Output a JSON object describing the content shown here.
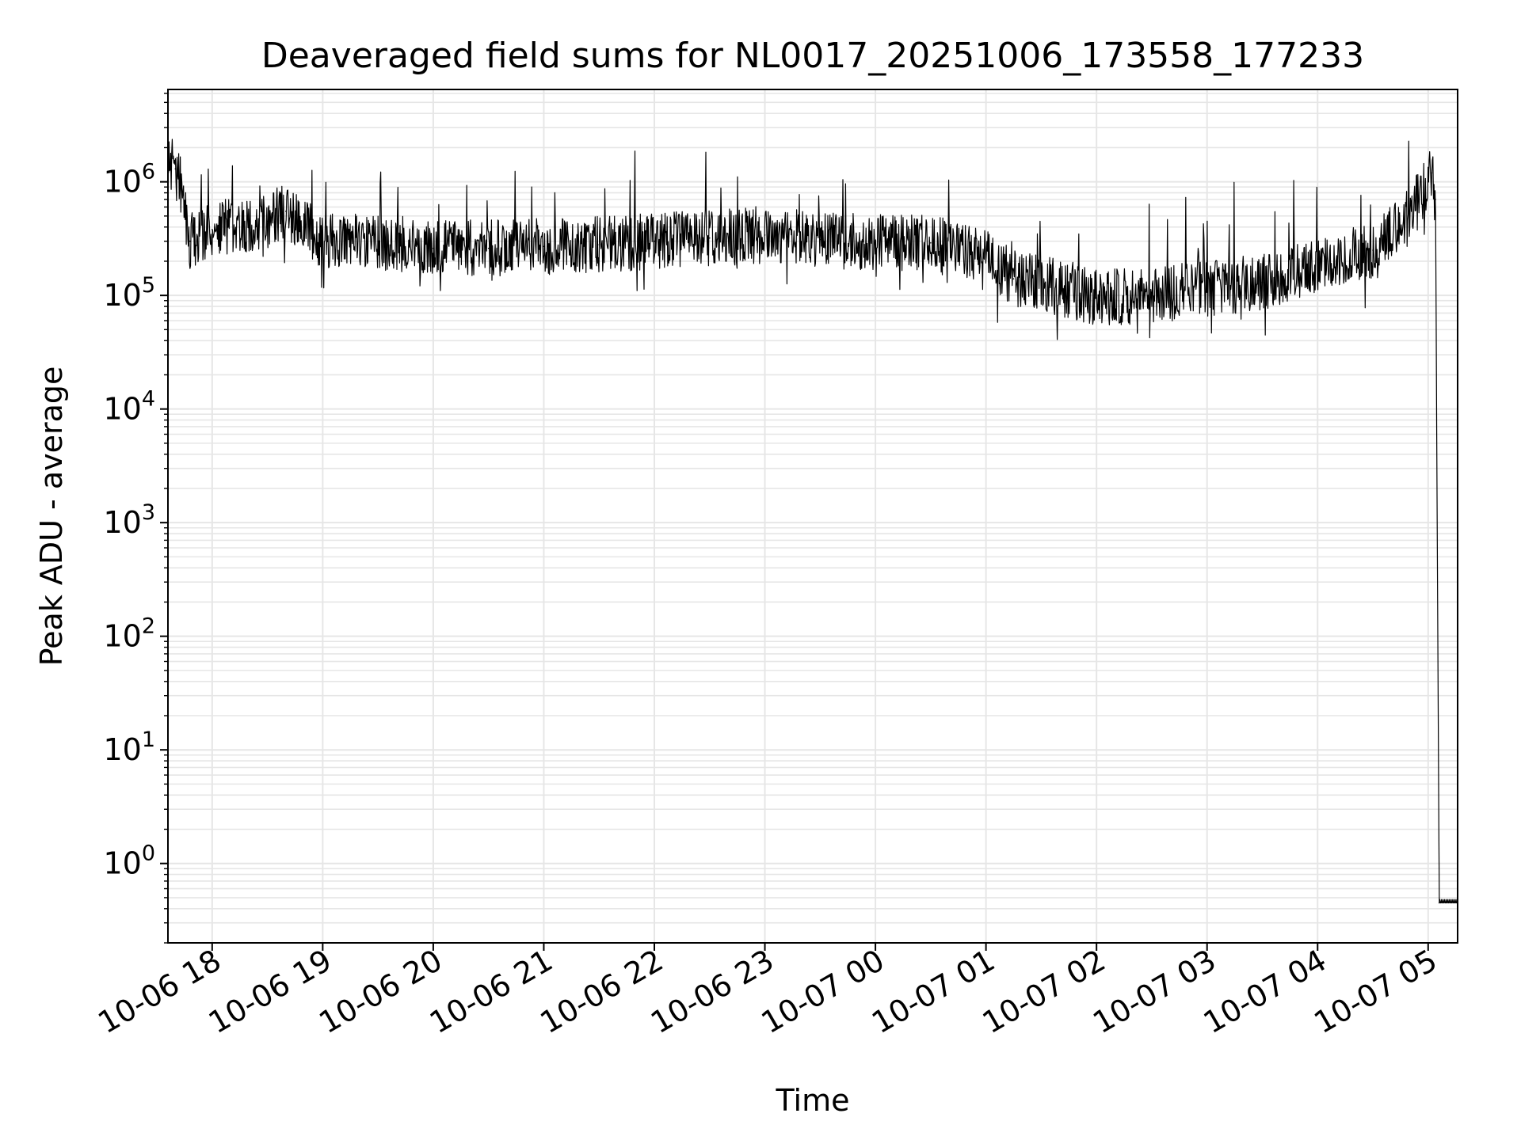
{
  "chart_data": {
    "type": "line",
    "title": "Deaveraged field sums for NL0017_20251006_173558_177233",
    "xlabel": "Time",
    "ylabel": "Peak ADU - average",
    "x_scale": "time",
    "y_scale": "log",
    "xlim": [
      "2025-10-06 17:36",
      "2025-10-07 05:16"
    ],
    "ylim": [
      0.2,
      6500000
    ],
    "grid": true,
    "legend": "none",
    "line_color": "#000000",
    "grid_color": "#e6e6e6",
    "x_ticks": [
      {
        "label": "10-06 18",
        "value": "2025-10-06 18:00"
      },
      {
        "label": "10-06 19",
        "value": "2025-10-06 19:00"
      },
      {
        "label": "10-06 20",
        "value": "2025-10-06 20:00"
      },
      {
        "label": "10-06 21",
        "value": "2025-10-06 21:00"
      },
      {
        "label": "10-06 22",
        "value": "2025-10-06 22:00"
      },
      {
        "label": "10-06 23",
        "value": "2025-10-06 23:00"
      },
      {
        "label": "10-07 00",
        "value": "2025-10-07 00:00"
      },
      {
        "label": "10-07 01",
        "value": "2025-10-07 01:00"
      },
      {
        "label": "10-07 02",
        "value": "2025-10-07 02:00"
      },
      {
        "label": "10-07 03",
        "value": "2025-10-07 03:00"
      },
      {
        "label": "10-07 04",
        "value": "2025-10-07 04:00"
      },
      {
        "label": "10-07 05",
        "value": "2025-10-07 05:00"
      }
    ],
    "y_ticks": [
      {
        "base": "10",
        "exp": "0",
        "value": 1
      },
      {
        "base": "10",
        "exp": "1",
        "value": 10
      },
      {
        "base": "10",
        "exp": "2",
        "value": 100
      },
      {
        "base": "10",
        "exp": "3",
        "value": 1000
      },
      {
        "base": "10",
        "exp": "4",
        "value": 10000
      },
      {
        "base": "10",
        "exp": "5",
        "value": 100000
      },
      {
        "base": "10",
        "exp": "6",
        "value": 1000000
      }
    ],
    "series": [
      {
        "points": [
          {
            "x": "2025-10-06 17:36",
            "y": 1500000
          },
          {
            "x": "2025-10-06 17:40",
            "y": 1300000
          },
          {
            "x": "2025-10-06 17:44",
            "y": 800000
          },
          {
            "x": "2025-10-06 17:48",
            "y": 300000
          },
          {
            "x": "2025-10-06 18:00",
            "y": 380000
          },
          {
            "x": "2025-10-06 18:30",
            "y": 450000
          },
          {
            "x": "2025-10-06 18:40",
            "y": 550000
          },
          {
            "x": "2025-10-06 19:00",
            "y": 300000
          },
          {
            "x": "2025-10-06 19:30",
            "y": 300000
          },
          {
            "x": "2025-10-06 20:00",
            "y": 260000
          },
          {
            "x": "2025-10-06 20:30",
            "y": 260000
          },
          {
            "x": "2025-10-06 21:00",
            "y": 270000
          },
          {
            "x": "2025-10-06 21:30",
            "y": 280000
          },
          {
            "x": "2025-10-06 22:00",
            "y": 300000
          },
          {
            "x": "2025-10-06 22:30",
            "y": 320000
          },
          {
            "x": "2025-10-06 23:00",
            "y": 340000
          },
          {
            "x": "2025-10-06 23:30",
            "y": 310000
          },
          {
            "x": "2025-10-07 00:00",
            "y": 290000
          },
          {
            "x": "2025-10-07 00:30",
            "y": 290000
          },
          {
            "x": "2025-10-07 01:00",
            "y": 230000
          },
          {
            "x": "2025-10-07 01:15",
            "y": 140000
          },
          {
            "x": "2025-10-07 01:30",
            "y": 130000
          },
          {
            "x": "2025-10-07 02:00",
            "y": 95000
          },
          {
            "x": "2025-10-07 02:30",
            "y": 100000
          },
          {
            "x": "2025-10-07 03:00",
            "y": 115000
          },
          {
            "x": "2025-10-07 03:30",
            "y": 130000
          },
          {
            "x": "2025-10-07 04:00",
            "y": 180000
          },
          {
            "x": "2025-10-07 04:30",
            "y": 250000
          },
          {
            "x": "2025-10-07 04:50",
            "y": 500000
          },
          {
            "x": "2025-10-07 05:00",
            "y": 1000000
          },
          {
            "x": "2025-10-07 05:02",
            "y": 1200000
          },
          {
            "x": "2025-10-07 05:04",
            "y": 700000
          },
          {
            "x": "2025-10-07 05:06",
            "y": 0.45
          },
          {
            "x": "2025-10-07 05:16",
            "y": 0.45
          }
        ]
      }
    ]
  }
}
